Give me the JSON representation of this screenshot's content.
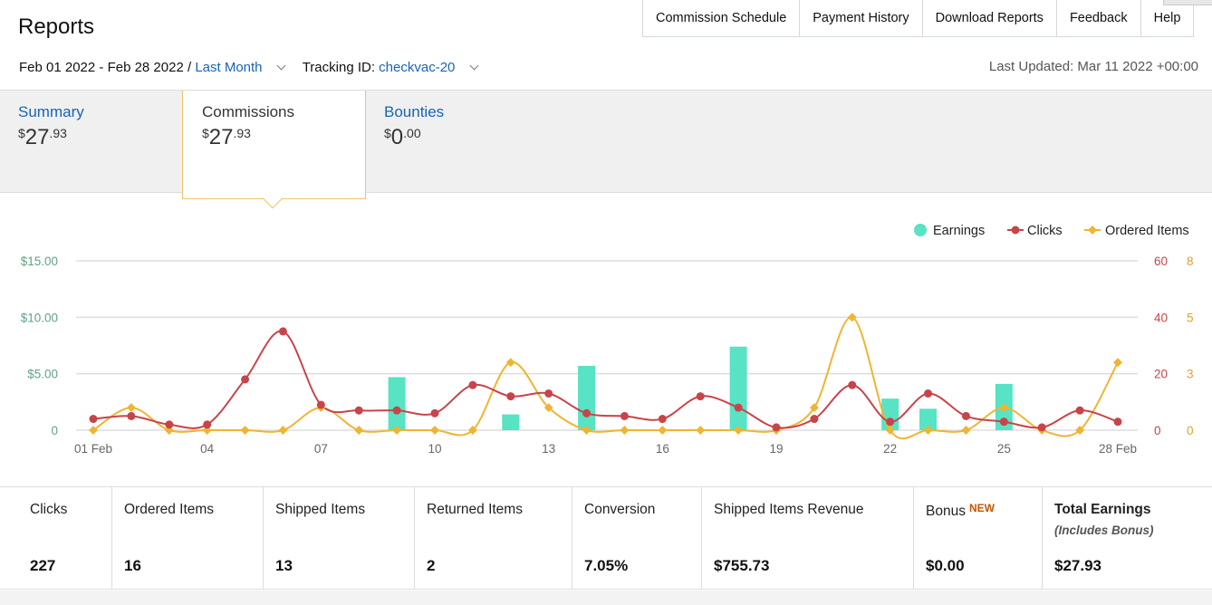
{
  "header": {
    "title": "Reports",
    "nav": [
      "Commission Schedule",
      "Payment History",
      "Download Reports",
      "Feedback",
      "Help"
    ]
  },
  "filters": {
    "date_range": "Feb 01 2022 - Feb 28 2022 /",
    "period": "Last Month",
    "tracking_label": "Tracking ID:",
    "tracking_id": "checkvac-20",
    "last_updated": "Last Updated: Mar 11 2022 +00:00"
  },
  "tabs": [
    {
      "label": "Summary",
      "dollar": "$",
      "whole": "27",
      "cents": ".93"
    },
    {
      "label": "Commissions",
      "dollar": "$",
      "whole": "27",
      "cents": ".93"
    },
    {
      "label": "Bounties",
      "dollar": "$",
      "whole": "0",
      "cents": ".00"
    }
  ],
  "chart_data": {
    "type": "bar+line",
    "legend": [
      "Earnings",
      "Clicks",
      "Ordered Items"
    ],
    "legend_position": "top-right",
    "colors": {
      "earnings": "#57e3c4",
      "clicks": "#c8444a",
      "ordered": "#f0b433",
      "grid": "#dddddd",
      "left_axis": "#5fa385",
      "right_axis_clicks": "#c8444a",
      "right_axis_ordered": "#e0a030"
    },
    "x_tick_labels": [
      "01 Feb",
      "04",
      "07",
      "10",
      "13",
      "16",
      "19",
      "22",
      "25",
      "28 Feb"
    ],
    "days": [
      1,
      2,
      3,
      4,
      5,
      6,
      7,
      8,
      9,
      10,
      11,
      12,
      13,
      14,
      15,
      16,
      17,
      18,
      19,
      20,
      21,
      22,
      23,
      24,
      25,
      26,
      27,
      28
    ],
    "earnings": [
      0,
      0,
      0,
      0,
      0,
      0,
      0,
      0,
      4.7,
      0,
      0,
      1.4,
      0,
      5.7,
      0,
      0,
      0,
      7.4,
      0,
      0,
      0,
      2.8,
      1.9,
      0,
      4.1,
      0,
      0,
      0
    ],
    "clicks": [
      4,
      5,
      2,
      2,
      18,
      35,
      9,
      7,
      7,
      6,
      16,
      12,
      13,
      6,
      5,
      4,
      12,
      8,
      1,
      4,
      16,
      3,
      13,
      5,
      3,
      1,
      7,
      3
    ],
    "ordered_items": [
      0,
      1,
      0,
      0,
      0,
      0,
      1,
      0,
      0,
      0,
      0,
      3,
      1,
      0,
      0,
      0,
      0,
      0,
      0,
      1,
      5,
      0,
      0,
      0,
      1,
      0,
      0,
      3
    ],
    "left_axis": {
      "ticks": [
        "0",
        "$5.00",
        "$10.00",
        "$15.00"
      ],
      "range": [
        0,
        15
      ]
    },
    "right_axis_clicks": {
      "ticks": [
        "0",
        "20",
        "40",
        "60"
      ],
      "range": [
        0,
        60
      ]
    },
    "right_axis_ordered": {
      "ticks": [
        "0",
        "3",
        "5",
        "8"
      ],
      "range": [
        0,
        7.5
      ]
    }
  },
  "stats": [
    {
      "label": "Clicks",
      "value": "227"
    },
    {
      "label": "Ordered Items",
      "value": "16"
    },
    {
      "label": "Shipped Items",
      "value": "13"
    },
    {
      "label": "Returned Items",
      "value": "2"
    },
    {
      "label": "Conversion",
      "value": "7.05%"
    },
    {
      "label": "Shipped Items Revenue",
      "value": "$755.73"
    },
    {
      "label": "Bonus",
      "badge": "NEW",
      "value": "$0.00"
    },
    {
      "label": "Total Earnings",
      "sub": "(Includes Bonus)",
      "value": "$27.93"
    }
  ]
}
